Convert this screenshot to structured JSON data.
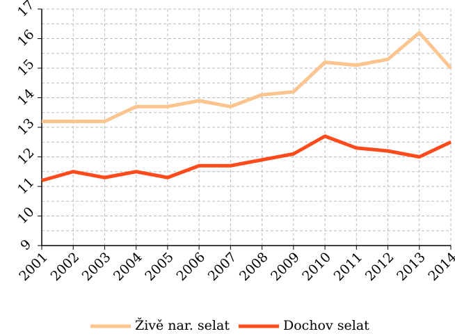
{
  "chart_data": {
    "type": "line",
    "categories": [
      "2001",
      "2002",
      "2003",
      "2004",
      "2005",
      "2006",
      "2007",
      "2008",
      "2009",
      "2010",
      "2011",
      "2012",
      "2013",
      "2014"
    ],
    "series": [
      {
        "name": "Živě nar. selat",
        "color": "#fcc48e",
        "values": [
          13.2,
          13.2,
          13.2,
          13.7,
          13.7,
          13.9,
          13.7,
          14.1,
          14.2,
          15.2,
          15.1,
          15.3,
          16.2,
          15.0
        ]
      },
      {
        "name": "Dochov selat",
        "color": "#ff4a1c",
        "values": [
          11.2,
          11.5,
          11.3,
          11.5,
          11.3,
          11.7,
          11.7,
          11.9,
          12.1,
          12.7,
          12.3,
          12.2,
          12.0,
          12.5
        ]
      }
    ],
    "ylim": [
      9,
      17
    ],
    "yticks": [
      9,
      10,
      11,
      12,
      13,
      14,
      15,
      16,
      17
    ],
    "grid": true,
    "legend": "bottom"
  }
}
